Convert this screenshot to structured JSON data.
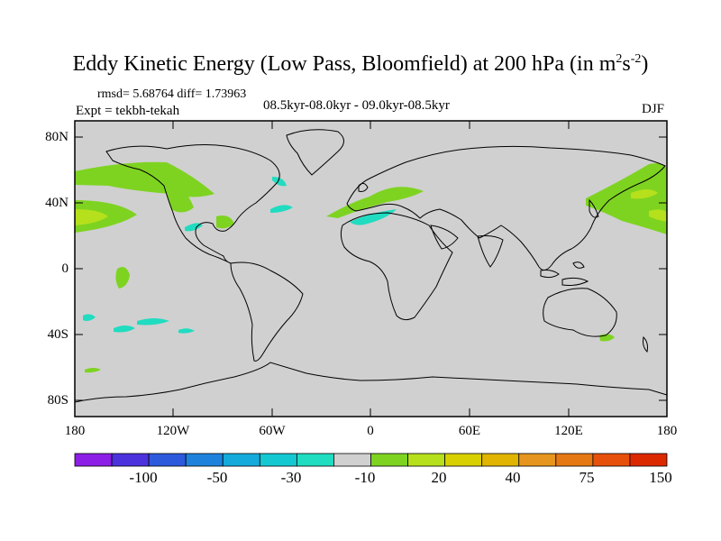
{
  "title": {
    "main": "Eddy Kinetic Energy (Low Pass, Bloomfield) at 200 hPa (in m",
    "sup1": "2",
    "mid": "s",
    "sup2": "-2",
    "end": ")"
  },
  "stats": {
    "rmsd_diff": "rmsd= 5.68764 diff= 1.73963",
    "expt": "Expt = tekbh-tekah",
    "periods": "08.5kyr-08.0kyr - 09.0kyr-08.5kyr",
    "season": "DJF"
  },
  "axes": {
    "y_labels": [
      "80N",
      "40N",
      "0",
      "40S",
      "80S"
    ],
    "x_labels": [
      "180",
      "120W",
      "60W",
      "0",
      "60E",
      "120E",
      "180"
    ]
  },
  "colors": {
    "land_ocean_bg": "#d0d0d0",
    "green": "#7ed321",
    "light_green": "#b6e01c",
    "cyan": "#20dcc0",
    "coast": "#000000"
  },
  "colorbar": {
    "colors": [
      "#8c1ee6",
      "#4b32dc",
      "#2d5adc",
      "#1e82dc",
      "#14aadc",
      "#14c8d2",
      "#20dcc0",
      "#d0d0d0",
      "#7ed321",
      "#b6e01c",
      "#d8d000",
      "#e0b400",
      "#e6961e",
      "#e67814",
      "#e6500a",
      "#dc2800"
    ],
    "labels": [
      "-100",
      "-50",
      "-30",
      "-10",
      "20",
      "40",
      "75",
      "150"
    ]
  }
}
